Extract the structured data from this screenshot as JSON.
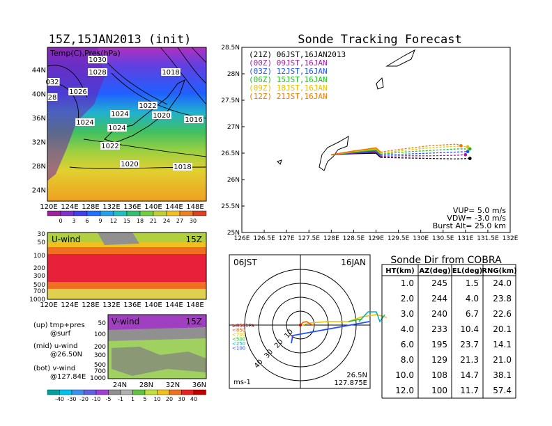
{
  "left_title": "15Z,15JAN2013 (init)",
  "right_title": "Sonde Tracking Forecast",
  "map_panel": {
    "field_label": "Temp(C),Pres(hPa)",
    "lat_ticks": [
      "44N",
      "40N",
      "36N",
      "32N",
      "28N",
      "24N"
    ],
    "lon_ticks": [
      "120E",
      "124E",
      "128E",
      "132E",
      "136E",
      "140E",
      "144E",
      "148E"
    ],
    "isobar_labels": [
      "1030",
      "1028",
      "1018",
      "032",
      "1026",
      "28",
      "1024",
      "1022",
      "1020",
      "1016",
      "1024",
      "1024",
      "1022",
      "1020",
      "1018"
    ],
    "colorbar_ticks": [
      "0",
      "3",
      "6",
      "9",
      "12",
      "15",
      "18",
      "21",
      "24",
      "27",
      "30"
    ]
  },
  "uwind_panel": {
    "label": "U-wind",
    "time": "15Z",
    "levels": [
      "30",
      "50",
      "100",
      "200",
      "300",
      "500",
      "700",
      "1000"
    ],
    "lon_ticks": [
      "120E",
      "124E",
      "128E",
      "132E",
      "136E",
      "140E",
      "144E",
      "148E"
    ]
  },
  "vwind_panel": {
    "label": "V-wind",
    "time": "15Z",
    "levels": [
      "50",
      "100",
      "200",
      "300",
      "500",
      "700",
      "1000"
    ],
    "lat_ticks": [
      "24N",
      "28N",
      "32N",
      "36N"
    ]
  },
  "legend_notes": {
    "top": "(up) tmp+pres",
    "top2": "@surf",
    "mid": "(mid) u-wind",
    "mid2": "@26.50N",
    "bot": "(bot) v-wind",
    "bot2": "@127.84E"
  },
  "wind_colorbar_ticks": [
    "-40",
    "-30",
    "-20",
    "-10",
    "-5",
    "-1",
    "1",
    "5",
    "10",
    "20",
    "30",
    "40"
  ],
  "track_panel": {
    "lat_ticks": [
      "28.5N",
      "28N",
      "27.5N",
      "27N",
      "26.5N",
      "26N",
      "25.5N",
      "25N"
    ],
    "lon_ticks": [
      "126E",
      "126.5E",
      "127E",
      "127.5E",
      "128E",
      "128.5E",
      "129E",
      "129.5E",
      "130E",
      "130.5E",
      "131E",
      "131.5E",
      "132E"
    ],
    "launches": [
      {
        "label": "(21Z)  06JST,16JAN2013",
        "color": "#000000"
      },
      {
        "label": "(00Z)  09JST,16JAN",
        "color": "#a020a0"
      },
      {
        "label": "(03Z)  12JST,16JAN",
        "color": "#2050ff"
      },
      {
        "label": "(06Z)  15JST,16JAN",
        "color": "#20c020"
      },
      {
        "label": "(09Z)  18JST,16JAN",
        "color": "#e8c000"
      },
      {
        "label": "(12Z)  21JST,16JAN",
        "color": "#f07800"
      }
    ],
    "params": [
      "VUP=  5.0  m/s",
      "VDW= -3.0  m/s",
      "Burst Alt=  25.0  km"
    ]
  },
  "polar_panel": {
    "time_label": "06JST",
    "date_label": "16JAN",
    "ring_labels": [
      "10",
      "20",
      "30",
      "40"
    ],
    "level_legend": [
      {
        "label": "≥850hPa",
        "color": "#d00000"
      },
      {
        "label": "<850",
        "color": "#e06000"
      },
      {
        "label": "<700",
        "color": "#e8c000"
      },
      {
        "label": "<500",
        "color": "#20c020"
      },
      {
        "label": "<250",
        "color": "#00b0c0"
      },
      {
        "label": "<100",
        "color": "#2050ff"
      }
    ],
    "units": "ms-1",
    "location_lat": "26.5N",
    "location_lon": "127.875E"
  },
  "table": {
    "title": "Sonde Dir from COBRA",
    "headers": [
      "HT(km)",
      "AZ(deg)",
      "EL(deg)",
      "RNG(km)"
    ],
    "rows": [
      [
        "1.0",
        "245",
        "1.5",
        "24.0"
      ],
      [
        "2.0",
        "244",
        "4.0",
        "23.8"
      ],
      [
        "3.0",
        "240",
        "6.7",
        "22.6"
      ],
      [
        "4.0",
        "233",
        "10.4",
        "20.1"
      ],
      [
        "6.0",
        "195",
        "23.7",
        "14.1"
      ],
      [
        "8.0",
        "129",
        "21.3",
        "21.0"
      ],
      [
        "10.0",
        "108",
        "14.7",
        "38.1"
      ],
      [
        "12.0",
        "100",
        "11.7",
        "57.4"
      ]
    ]
  },
  "chart_data": [
    {
      "type": "line",
      "title": "Sonde Tracking Forecast",
      "xlim": [
        126,
        132
      ],
      "ylim": [
        25,
        28.5
      ],
      "series": [
        {
          "name": "(21Z)  06JST,16JAN2013",
          "x": [
            128.0,
            128.5,
            129.0,
            129.1,
            129.6,
            130.2,
            130.8,
            131.1
          ],
          "y": [
            26.47,
            26.49,
            26.5,
            26.42,
            26.41,
            26.4,
            26.39,
            26.4
          ]
        },
        {
          "name": "(00Z)  09JST,16JAN",
          "x": [
            128.0,
            128.5,
            129.0,
            129.1,
            129.6,
            130.2,
            130.8,
            131.0
          ],
          "y": [
            26.47,
            26.5,
            26.52,
            26.44,
            26.45,
            26.45,
            26.46,
            26.47
          ]
        },
        {
          "name": "(03Z)  12JST,16JAN",
          "x": [
            128.0,
            128.5,
            129.0,
            129.1,
            129.6,
            130.2,
            130.8,
            131.05
          ],
          "y": [
            26.47,
            26.51,
            26.54,
            26.46,
            26.48,
            26.5,
            26.52,
            26.53
          ]
        },
        {
          "name": "(06Z)  15JST,16JAN",
          "x": [
            128.0,
            128.5,
            129.0,
            129.1,
            129.6,
            130.2,
            130.8,
            131.1
          ],
          "y": [
            26.47,
            26.52,
            26.56,
            26.48,
            26.52,
            26.55,
            26.58,
            26.58
          ]
        },
        {
          "name": "(09Z)  18JST,16JAN",
          "x": [
            128.0,
            128.5,
            129.0,
            129.1,
            129.6,
            130.2,
            130.8,
            131.05
          ],
          "y": [
            26.47,
            26.53,
            26.58,
            26.5,
            26.55,
            26.6,
            26.63,
            26.62
          ]
        },
        {
          "name": "(12Z)  21JST,16JAN",
          "x": [
            128.0,
            128.5,
            129.0,
            129.1,
            129.6,
            130.2,
            130.8,
            130.9
          ],
          "y": [
            26.47,
            26.54,
            26.6,
            26.52,
            26.58,
            26.64,
            26.67,
            26.64
          ]
        }
      ]
    },
    {
      "type": "table",
      "title": "Sonde Dir from COBRA",
      "columns": [
        "HT(km)",
        "AZ(deg)",
        "EL(deg)",
        "RNG(km)"
      ],
      "rows": [
        [
          1.0,
          245,
          1.5,
          24.0
        ],
        [
          2.0,
          244,
          4.0,
          23.8
        ],
        [
          3.0,
          240,
          6.7,
          22.6
        ],
        [
          4.0,
          233,
          10.4,
          20.1
        ],
        [
          6.0,
          195,
          23.7,
          14.1
        ],
        [
          8.0,
          129,
          21.3,
          21.0
        ],
        [
          10.0,
          108,
          14.7,
          38.1
        ],
        [
          12.0,
          100,
          11.7,
          57.4
        ]
      ]
    }
  ]
}
